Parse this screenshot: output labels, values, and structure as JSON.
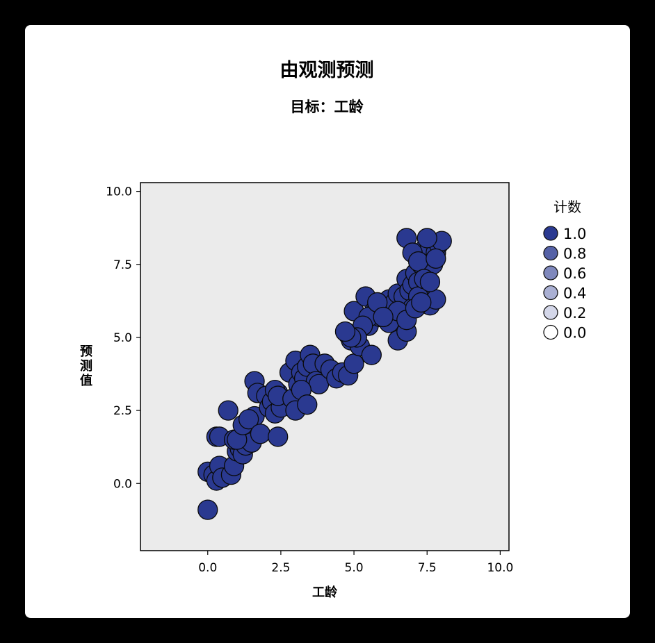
{
  "chart_data": {
    "type": "scatter",
    "title": "由观测预测",
    "subtitle": "目标：工龄",
    "xlabel": "工龄",
    "ylabel": "预测值",
    "xlim": [
      -2.3,
      10.3
    ],
    "ylim": [
      -2.3,
      10.3
    ],
    "xticks": [
      "0.0",
      "2.5",
      "5.0",
      "7.5",
      "10.0"
    ],
    "yticks": [
      "0.0",
      "2.5",
      "5.0",
      "7.5",
      "10.0"
    ],
    "xtick_values": [
      0,
      2.5,
      5,
      7.5,
      10
    ],
    "ytick_values": [
      0,
      2.5,
      5,
      7.5,
      10
    ],
    "grid": false,
    "colors": {
      "point": "#2a3990",
      "point_edge": "#0a0a0a",
      "plot_bg": "#ebebeb"
    },
    "legend": {
      "title": "计数",
      "placement": "right",
      "entries": [
        {
          "label": "1.0",
          "color": "#2a3990"
        },
        {
          "label": "0.8",
          "color": "#5561a6"
        },
        {
          "label": "0.6",
          "color": "#7f88bc"
        },
        {
          "label": "0.4",
          "color": "#aab0d3"
        },
        {
          "label": "0.2",
          "color": "#d4d7e9"
        },
        {
          "label": "0.0",
          "color": "#ffffff"
        }
      ]
    },
    "series": [
      {
        "x": [
          0.0,
          0.0,
          0.2,
          0.3,
          0.4,
          0.5,
          0.3,
          0.4,
          0.7,
          0.8,
          0.9,
          1.0,
          1.1,
          1.2,
          1.3,
          1.4,
          1.5,
          1.6,
          0.9,
          1.0,
          1.2,
          1.4,
          1.8,
          1.6,
          1.7,
          2.0,
          2.1,
          2.2,
          2.3,
          2.4,
          2.5,
          2.3,
          2.4,
          2.8,
          2.9,
          3.0,
          3.1,
          3.2,
          3.3,
          3.4,
          3.5,
          3.6,
          3.7,
          3.8,
          4.0,
          4.2,
          4.4,
          4.6,
          4.8,
          5.0,
          4.8,
          4.9,
          5.0,
          5.2,
          5.4,
          5.5,
          5.6,
          5.7,
          5.8,
          5.9,
          6.0,
          6.2,
          6.3,
          6.4,
          6.5,
          6.6,
          6.7,
          6.8,
          6.9,
          7.0,
          7.1,
          7.2,
          7.3,
          7.4,
          7.5,
          7.6,
          7.7,
          7.8,
          7.9,
          8.0,
          6.8,
          7.0,
          7.2,
          7.4,
          7.6,
          7.8,
          6.5,
          6.8,
          7.0,
          7.2,
          7.4,
          7.6,
          6.2,
          6.5,
          6.8,
          7.1,
          7.3,
          7.5,
          7.8,
          5.5,
          5.8,
          6.0,
          5.3,
          5.1,
          4.9,
          4.7,
          2.4,
          3.0,
          3.2,
          3.4
        ],
        "y": [
          -0.9,
          0.4,
          0.3,
          0.1,
          0.6,
          0.2,
          1.6,
          1.6,
          2.5,
          0.3,
          0.6,
          1.1,
          1.2,
          1.0,
          1.3,
          1.5,
          1.4,
          2.3,
          1.5,
          1.5,
          2.0,
          2.2,
          1.7,
          3.5,
          3.1,
          3.0,
          2.6,
          2.8,
          2.4,
          3.1,
          2.6,
          3.2,
          3.0,
          3.8,
          2.9,
          4.2,
          3.4,
          3.8,
          3.6,
          4.0,
          4.4,
          4.1,
          3.5,
          3.4,
          4.1,
          3.9,
          3.6,
          3.8,
          3.7,
          4.1,
          5.1,
          4.9,
          5.9,
          4.7,
          6.4,
          5.4,
          4.4,
          5.9,
          6.0,
          5.7,
          5.9,
          6.3,
          5.6,
          6.2,
          6.5,
          5.3,
          6.4,
          7.0,
          6.6,
          6.8,
          7.2,
          6.9,
          7.5,
          8.0,
          7.7,
          8.1,
          7.5,
          7.9,
          8.2,
          8.3,
          8.4,
          7.9,
          7.6,
          6.3,
          6.1,
          6.3,
          4.9,
          5.2,
          6.0,
          6.4,
          7.0,
          6.9,
          5.5,
          5.9,
          5.6,
          6.0,
          6.2,
          8.4,
          7.7,
          5.7,
          6.2,
          5.7,
          5.4,
          5.0,
          5.0,
          5.2,
          1.6,
          2.5,
          3.2,
          2.7
        ]
      }
    ]
  }
}
